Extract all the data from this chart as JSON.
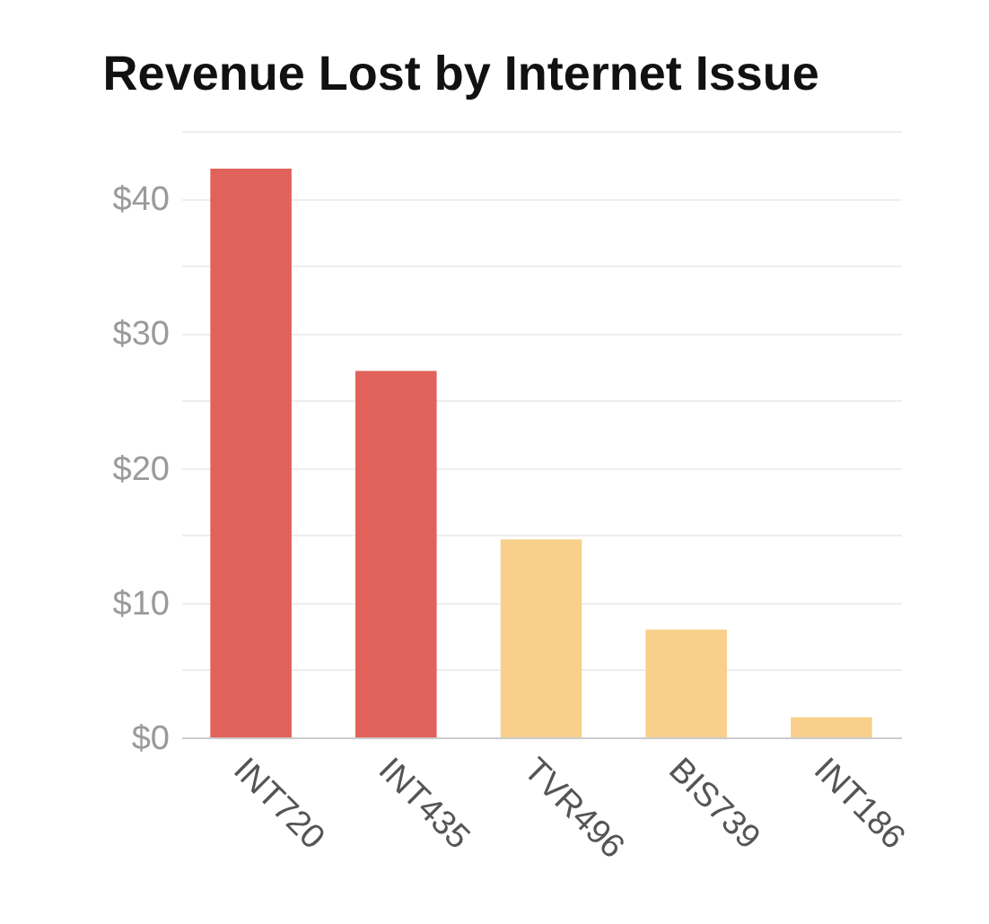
{
  "chart_data": {
    "type": "bar",
    "title": "Revenue Lost by Internet Issue",
    "categories": [
      "INT720",
      "INT435",
      "TVR496",
      "BIS739",
      "INT186"
    ],
    "values": [
      42.2,
      27.2,
      14.7,
      8.0,
      1.5
    ],
    "colors": [
      "#e0625a",
      "#e0625a",
      "#f8d08c",
      "#f8d08c",
      "#f8d08c"
    ],
    "ylim": [
      0,
      45
    ],
    "yticks": [
      {
        "value": 0,
        "label": "$0"
      },
      {
        "value": 5,
        "label": null
      },
      {
        "value": 10,
        "label": "$10"
      },
      {
        "value": 15,
        "label": null
      },
      {
        "value": 20,
        "label": "$20"
      },
      {
        "value": 25,
        "label": null
      },
      {
        "value": 30,
        "label": "$30"
      },
      {
        "value": 35,
        "label": null
      },
      {
        "value": 40,
        "label": "$40"
      },
      {
        "value": 45,
        "label": null
      }
    ],
    "grid": "y"
  }
}
